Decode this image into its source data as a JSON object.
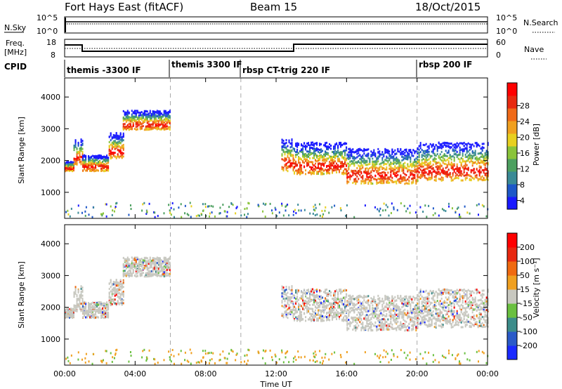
{
  "header": {
    "site": "Fort Hays East (fitACF)",
    "beam": "Beam 15",
    "date": "18/Oct/2015"
  },
  "noise_panel": {
    "left_label": "N.Sky",
    "right_label": "N.Search",
    "left_ticks": [
      "10^5",
      "10^0"
    ],
    "right_ticks": [
      "10^5",
      "10^0"
    ]
  },
  "freq_panel": {
    "left_label_1": "Freq.",
    "left_label_2": "[MHz]",
    "right_label": "Nave",
    "left_ticks": [
      "18",
      "8"
    ],
    "right_ticks": [
      "60",
      "0"
    ]
  },
  "cpid": {
    "label": "CPID",
    "segments": [
      {
        "text": "themis -3300 IF",
        "start_hour": 0.0
      },
      {
        "text": "themis 3300 IF",
        "start_hour": 6.0
      },
      {
        "text": "rbsp CT-trig 220 IF",
        "start_hour": 10.0
      },
      {
        "text": "rbsp 200 IF",
        "start_hour": 20.0
      }
    ]
  },
  "x_axis": {
    "label": "Time UT",
    "ticks": [
      "00:00",
      "04:00",
      "08:00",
      "12:00",
      "16:00",
      "20:00",
      "00:00"
    ],
    "range_hours": [
      0,
      24
    ]
  },
  "range_axis": {
    "label": "Slant Range [km]",
    "ticks": [
      "1000",
      "2000",
      "3000",
      "4000"
    ],
    "range_km": [
      180,
      4600
    ]
  },
  "power_colorbar": {
    "label": "Power [dB]",
    "ticks": [
      "4",
      "8",
      "12",
      "16",
      "20",
      "24",
      "28"
    ],
    "colors": [
      "#1a1aff",
      "#1e58c8",
      "#3a8a96",
      "#4da060",
      "#8ac43a",
      "#e8d020",
      "#f0a020",
      "#f06a18",
      "#e82a10",
      "#ff0000"
    ]
  },
  "velocity_colorbar": {
    "label": "Velocity [m s⁻¹]",
    "ticks": [
      "200",
      "100",
      "50",
      "15",
      "-15",
      "-50",
      "-100",
      "-200"
    ],
    "colors": [
      "#1a2aff",
      "#2a5ac8",
      "#3c8c8a",
      "#6ac040",
      "#c8c8c0",
      "#f0a020",
      "#f06a10",
      "#e82810",
      "#ff0000"
    ]
  },
  "chart_data": {
    "type": "heatmap",
    "title": "Fort Hays East (fitACF)",
    "xlabel": "Time UT",
    "ylabel": "Slant Range [km]",
    "xlim_hours": [
      0,
      24
    ],
    "ylim_km": [
      180,
      4600
    ],
    "power_echo_bands_km": [
      {
        "t0": 0.0,
        "t1": 0.5,
        "r0": 1700,
        "r1": 2000
      },
      {
        "t0": 0.5,
        "t1": 1.0,
        "r0": 1900,
        "r1": 2700
      },
      {
        "t0": 1.0,
        "t1": 2.5,
        "r0": 1700,
        "r1": 2200
      },
      {
        "t0": 2.5,
        "t1": 3.3,
        "r0": 2100,
        "r1": 2900
      },
      {
        "t0": 3.3,
        "t1": 6.0,
        "r0": 3000,
        "r1": 3600
      },
      {
        "t0": 12.3,
        "t1": 13.0,
        "r0": 1700,
        "r1": 2700
      },
      {
        "t0": 13.0,
        "t1": 16.0,
        "r0": 1600,
        "r1": 2600
      },
      {
        "t0": 16.0,
        "t1": 20.0,
        "r0": 1300,
        "r1": 2400
      },
      {
        "t0": 20.0,
        "t1": 24.0,
        "r0": 1400,
        "r1": 2600
      }
    ],
    "fdate": "18/Oct/2015"
  }
}
